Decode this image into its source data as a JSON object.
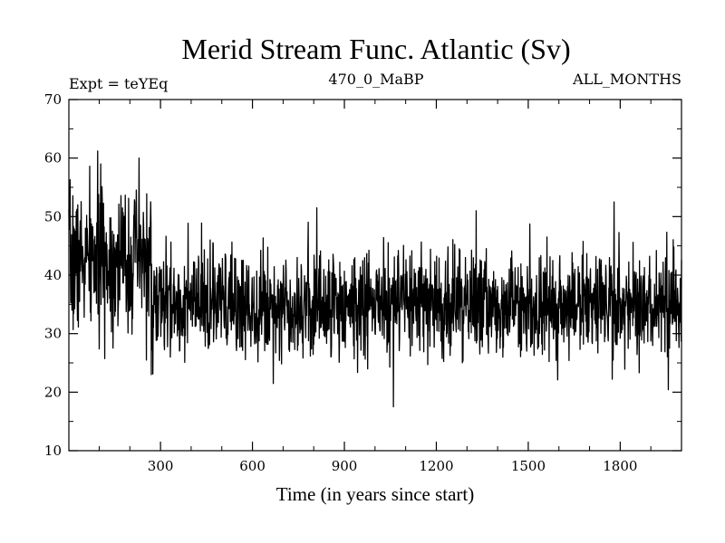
{
  "chart_data": {
    "type": "line",
    "title": "Merid Stream Func. Atlantic (Sv)",
    "subtitle_left": "Expt = teYEq",
    "subtitle_center": "470_0_MaBP",
    "subtitle_right": "ALL_MONTHS",
    "xlabel": "Time (in years since start)",
    "ylabel": "",
    "xlim": [
      1,
      2000
    ],
    "ylim": [
      10,
      70
    ],
    "xticks": [
      300,
      600,
      900,
      1200,
      1500,
      1800
    ],
    "yticks": [
      10,
      20,
      30,
      40,
      50,
      60,
      70
    ],
    "grid": false,
    "series": [
      {
        "name": "Atlantic meridional stream function",
        "color": "#000000",
        "segments": [
          {
            "x_start": 1,
            "x_end": 270,
            "mean": 42.5,
            "spread": 6.0
          },
          {
            "x_start": 270,
            "x_end": 2000,
            "mean": 35.0,
            "spread": 4.5
          }
        ],
        "notable_points": [
          {
            "x": 30,
            "y": 52
          },
          {
            "x": 105,
            "y": 59
          },
          {
            "x": 230,
            "y": 60
          },
          {
            "x": 270,
            "y": 23
          },
          {
            "x": 810,
            "y": 51.5
          },
          {
            "x": 1060,
            "y": 17.5
          },
          {
            "x": 1330,
            "y": 51
          },
          {
            "x": 1780,
            "y": 52.5
          }
        ]
      }
    ]
  }
}
